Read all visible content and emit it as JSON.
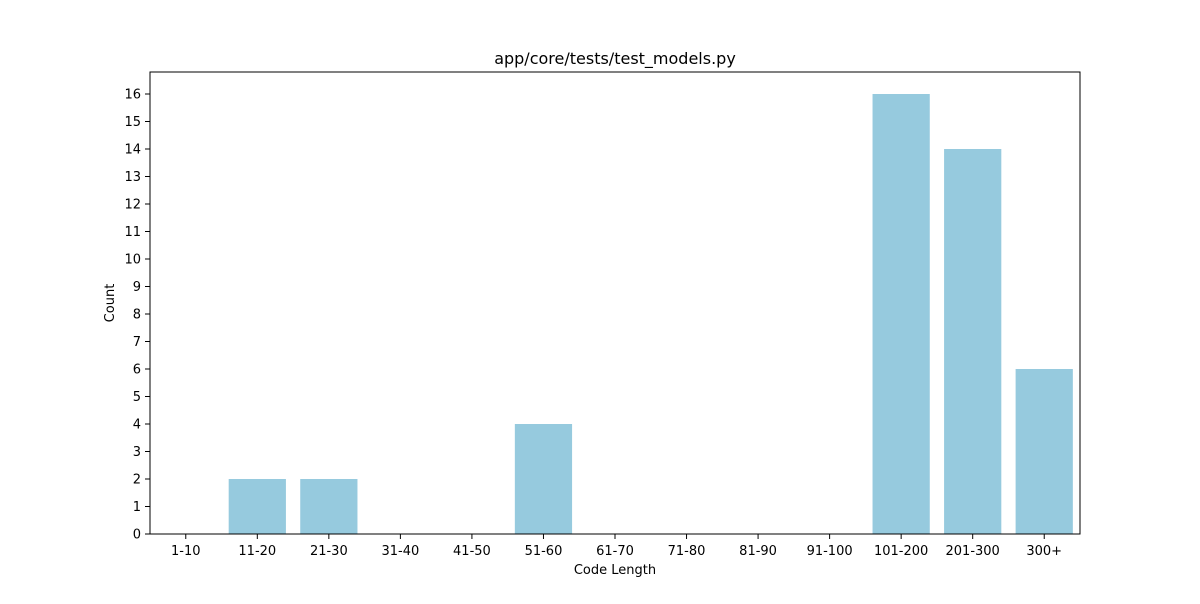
{
  "chart_data": {
    "type": "bar",
    "title": "app/core/tests/test_models.py",
    "xlabel": "Code Length",
    "ylabel": "Count",
    "categories": [
      "1-10",
      "11-20",
      "21-30",
      "31-40",
      "41-50",
      "51-60",
      "61-70",
      "71-80",
      "81-90",
      "91-100",
      "101-200",
      "201-300",
      "300+"
    ],
    "values": [
      0,
      2,
      2,
      0,
      0,
      4,
      0,
      0,
      0,
      0,
      16,
      14,
      6
    ],
    "ylim": [
      0,
      16.8
    ],
    "yticks": [
      0,
      1,
      2,
      3,
      4,
      5,
      6,
      7,
      8,
      9,
      10,
      11,
      12,
      13,
      14,
      15,
      16
    ],
    "grid": false,
    "bar_color": "#96cade"
  }
}
